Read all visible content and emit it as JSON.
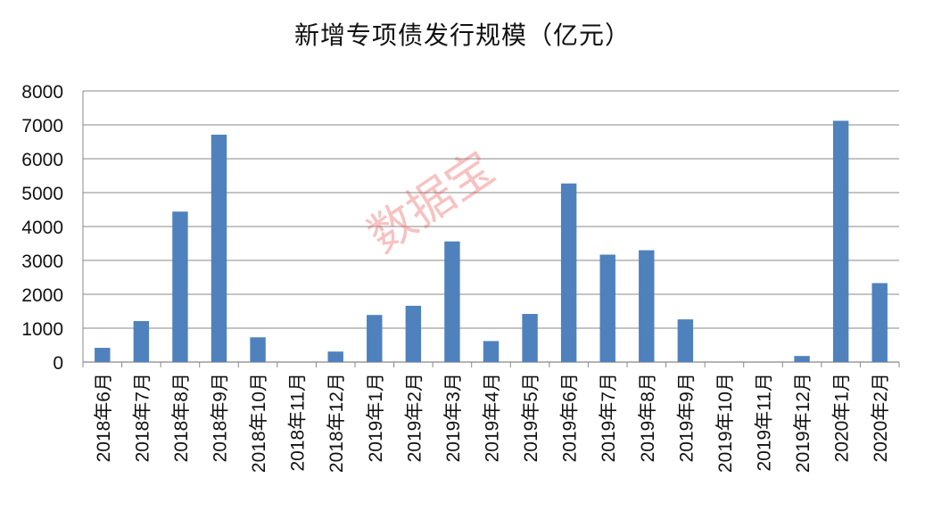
{
  "chart_data": {
    "type": "bar",
    "title": "新增专项债发行规模（亿元）",
    "xlabel": "",
    "ylabel": "",
    "categories": [
      "2018年6月",
      "2018年7月",
      "2018年8月",
      "2018年9月",
      "2018年10月",
      "2018年11月",
      "2018年12月",
      "2019年1月",
      "2019年2月",
      "2019年3月",
      "2019年4月",
      "2019年5月",
      "2019年6月",
      "2019年7月",
      "2019年8月",
      "2019年9月",
      "2019年10月",
      "2019年11月",
      "2019年12月",
      "2020年1月",
      "2020年2月"
    ],
    "values": [
      420,
      1210,
      4440,
      6710,
      730,
      0,
      310,
      1390,
      1660,
      3560,
      620,
      1420,
      5270,
      3170,
      3300,
      1260,
      0,
      0,
      180,
      7120,
      2330
    ],
    "ylim": [
      0,
      8000
    ],
    "yticks": [
      0,
      1000,
      2000,
      3000,
      4000,
      5000,
      6000,
      7000,
      8000
    ],
    "grid": true,
    "bar_color": "#4F81BD"
  },
  "watermark": "数据宝"
}
